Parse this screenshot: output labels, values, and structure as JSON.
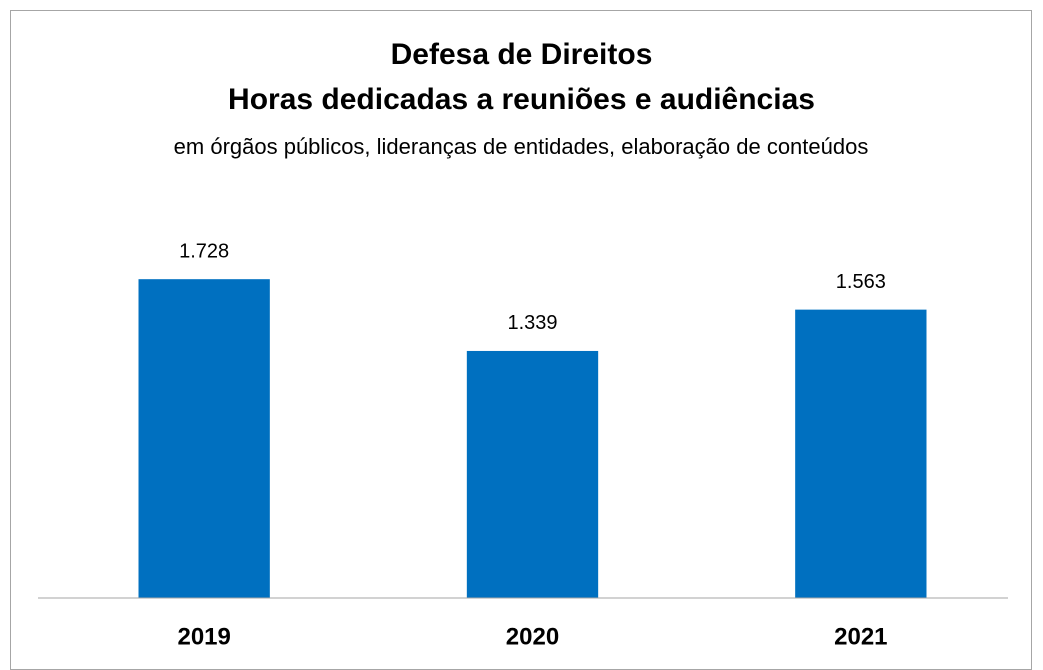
{
  "chart_data": {
    "type": "bar",
    "title": [
      "Defesa de Direitos",
      "Horas dedicadas a reuniões e audiências"
    ],
    "subtitle": "em órgãos públicos, lideranças de entidades, elaboração de conteúdos",
    "categories": [
      "2019",
      "2020",
      "2021"
    ],
    "values": [
      1728,
      1339,
      1563
    ],
    "value_labels": [
      "1.728",
      "1.339",
      "1.563"
    ],
    "color": "#0070c0",
    "ylim": [
      0,
      2000
    ]
  }
}
